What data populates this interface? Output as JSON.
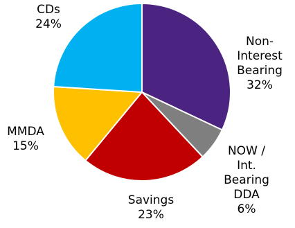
{
  "chart_data": {
    "type": "pie",
    "title": "",
    "start_angle_deg": 0,
    "direction": "clockwise",
    "slices": [
      {
        "label_lines": [
          "Non-",
          "Interest",
          "Bearing",
          "32%"
        ],
        "label": "Non-Interest Bearing",
        "value": 32,
        "color": "#4B2482"
      },
      {
        "label_lines": [
          "NOW /",
          "Int.",
          "Bearing",
          "DDA",
          "6%"
        ],
        "label": "NOW / Int. Bearing DDA",
        "value": 6,
        "color": "#7F7F7F"
      },
      {
        "label_lines": [
          "Savings",
          "23%"
        ],
        "label": "Savings",
        "value": 23,
        "color": "#C00000"
      },
      {
        "label_lines": [
          "MMDA",
          "15%"
        ],
        "label": "MMDA",
        "value": 15,
        "color": "#FFC000"
      },
      {
        "label_lines": [
          "CDs",
          "24%"
        ],
        "label": "CDs",
        "value": 24,
        "color": "#00B0F0"
      }
    ]
  }
}
